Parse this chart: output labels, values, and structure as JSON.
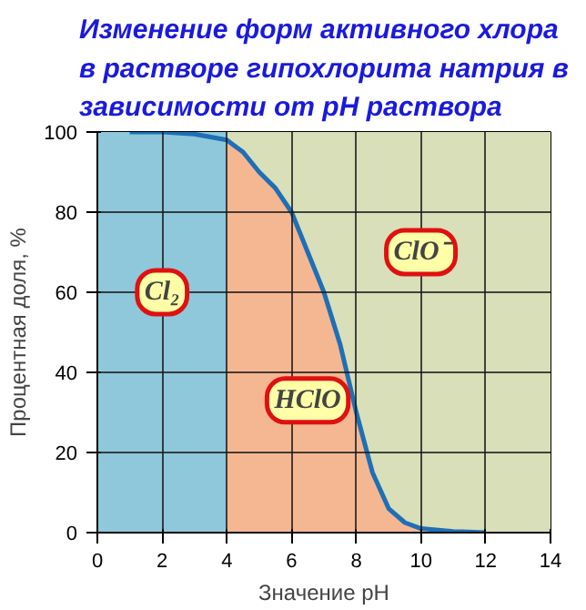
{
  "chart_data": {
    "type": "line",
    "title": "Изменение форм активного хлора\nв растворе гипохлорита натрия в\nзависимости от pH раствора",
    "xlabel": "Значение pH",
    "ylabel": "Процентная доля, %",
    "xlim": [
      0,
      14
    ],
    "ylim": [
      0,
      100
    ],
    "xticks": [
      0,
      2,
      4,
      6,
      8,
      10,
      12,
      14
    ],
    "yticks": [
      0,
      20,
      40,
      60,
      80,
      100
    ],
    "grid": true,
    "bands": [
      {
        "axis": "x",
        "from": 0,
        "to": 4,
        "color": "#8ec8da"
      },
      {
        "axis": "x",
        "from": 4,
        "to": 14,
        "color": "#d8dfb9"
      }
    ],
    "series": [
      {
        "type": "area",
        "color": "#f5b792",
        "x": [
          4,
          4.5,
          5,
          5.5,
          6,
          6.5,
          7,
          7.5,
          8,
          8.5,
          9,
          9.5,
          10,
          11,
          12
        ],
        "values": [
          98,
          95,
          90,
          86,
          80,
          70,
          60,
          47,
          30,
          15,
          6,
          2.5,
          1,
          0.3,
          0
        ]
      },
      {
        "color": "#1f6fb5",
        "x": [
          1,
          2,
          3,
          4,
          4.5,
          5,
          5.5,
          6,
          6.5,
          7,
          7.5,
          8,
          8.5,
          9,
          9.5,
          10,
          11,
          12
        ],
        "values": [
          100,
          100,
          99.5,
          98,
          95,
          90,
          86,
          80,
          70,
          60,
          47,
          30,
          15,
          6,
          2.5,
          1,
          0.3,
          0
        ]
      }
    ],
    "annotations": [
      "Cl₂",
      "HClO",
      "ClO⁻"
    ]
  }
}
